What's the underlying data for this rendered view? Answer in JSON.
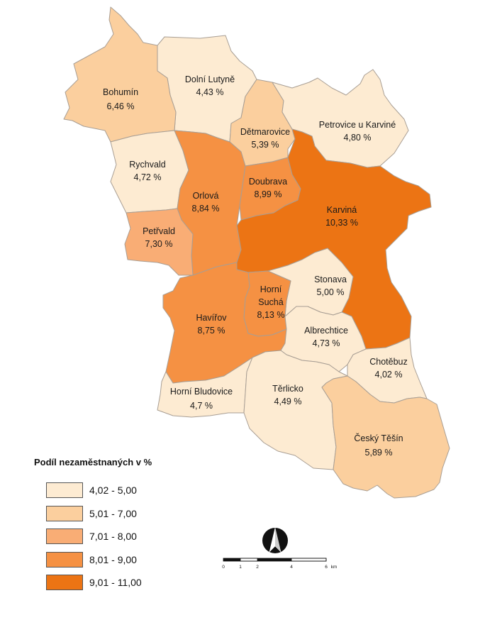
{
  "legend": {
    "title": "Podíl nezaměstnaných v %",
    "classes": [
      {
        "label": "4,02 - 5,00",
        "color": "#fdebd2"
      },
      {
        "label": "5,01 - 7,00",
        "color": "#fbcf9e"
      },
      {
        "label": "7,01 - 8,00",
        "color": "#f9ad75"
      },
      {
        "label": "8,01 - 9,00",
        "color": "#f59143"
      },
      {
        "label": "9,01 - 11,00",
        "color": "#ec7414"
      }
    ]
  },
  "regions": [
    {
      "name": "Dolní Lutyně",
      "value": "4,43 %",
      "class": 0
    },
    {
      "name": "Bohumín",
      "value": "6,46 %",
      "class": 1
    },
    {
      "name": "Dětmarovice",
      "value": "5,39 %",
      "class": 1
    },
    {
      "name": "Petrovice u Karviné",
      "value": "4,80 %",
      "class": 0
    },
    {
      "name": "Rychvald",
      "value": "4,72 %",
      "class": 0
    },
    {
      "name": "Orlová",
      "value": "8,84 %",
      "class": 3
    },
    {
      "name": "Doubrava",
      "value": "8,99 %",
      "class": 3
    },
    {
      "name": "Karviná",
      "value": "10,33 %",
      "class": 4
    },
    {
      "name": "Petřvald",
      "value": "7,30 %",
      "class": 2
    },
    {
      "name": "Stonava",
      "value": "5,00 %",
      "class": 0
    },
    {
      "name": "Horní Suchá",
      "value": "8,13 %",
      "class": 3
    },
    {
      "name": "Havířov",
      "value": "8,75 %",
      "class": 3
    },
    {
      "name": "Albrechtice",
      "value": "4,73 %",
      "class": 0
    },
    {
      "name": "Chotěbuz",
      "value": "4,02 %",
      "class": 0
    },
    {
      "name": "Horní Bludovice",
      "value": "4,7 %",
      "class": 0
    },
    {
      "name": "Těrlicko",
      "value": "4,49 %",
      "class": 0
    },
    {
      "name": "Český Těšín",
      "value": "5,89 %",
      "class": 1
    }
  ],
  "scalebar": {
    "ticks": [
      "0",
      "1",
      "2",
      "4",
      "6"
    ],
    "unit": "km"
  },
  "icons": {
    "north_arrow": "north-arrow-icon"
  }
}
